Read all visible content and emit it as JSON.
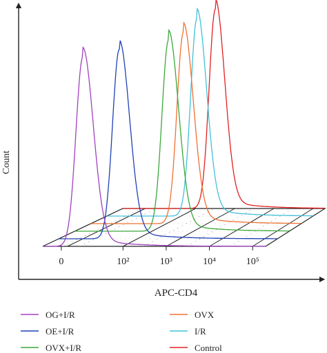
{
  "chart_data": {
    "type": "line",
    "subtype": "3D offset flow-cytometry histogram overlay",
    "title": "",
    "xlabel": "APC-CD4",
    "ylabel": "Count",
    "xscale": "log",
    "x_tick_labels": [
      {
        "x": 0,
        "label": "0"
      },
      {
        "x": 100,
        "label": "10²"
      },
      {
        "x": 1000,
        "label": "10³"
      },
      {
        "x": 10000,
        "label": "10⁴"
      },
      {
        "x": 100000,
        "label": "10⁵"
      }
    ],
    "x_range": [
      -30,
      200000
    ],
    "y_range": [
      0,
      1
    ],
    "grid": "perspective floor with dotted guide lines",
    "legend_position": "bottom, two columns",
    "series": [
      {
        "name": "OG+I/R",
        "color": "#a040c0",
        "layer": 0,
        "peak_x": 35,
        "peak_count": 0.95
      },
      {
        "name": "OE+I/R",
        "color": "#1f3fb5",
        "layer": 1,
        "peak_x": 70,
        "peak_count": 0.95
      },
      {
        "name": "OVX+I/R",
        "color": "#3aa83a",
        "layer": 2,
        "peak_x": 250,
        "peak_count": 0.96
      },
      {
        "name": "OVX",
        "color": "#f07030",
        "layer": 3,
        "peak_x": 260,
        "peak_count": 0.96
      },
      {
        "name": "I/R",
        "color": "#40c0d8",
        "layer": 4,
        "peak_x": 250,
        "peak_count": 0.99
      },
      {
        "name": "Control",
        "color": "#e02020",
        "layer": 5,
        "peak_x": 320,
        "peak_count": 1.0
      }
    ]
  }
}
